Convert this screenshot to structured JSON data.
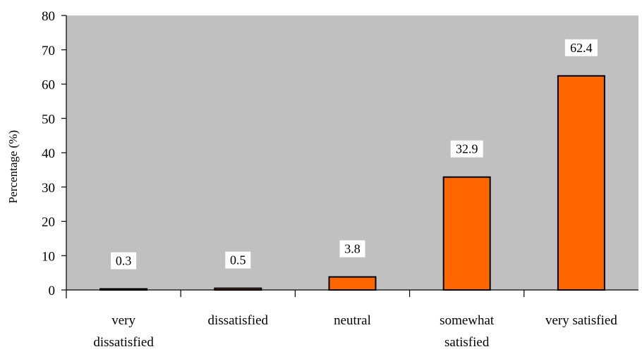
{
  "chart_data": {
    "type": "bar",
    "categories": [
      [
        "very",
        "dissatisfied"
      ],
      [
        "dissatisfied"
      ],
      [
        "neutral"
      ],
      [
        "somewhat",
        "satisfied"
      ],
      [
        "very satisfied"
      ]
    ],
    "values": [
      0.3,
      0.5,
      3.8,
      32.9,
      62.4
    ],
    "data_labels": [
      "0.3",
      "0.5",
      "3.8",
      "32.9",
      "62.4"
    ],
    "title": "",
    "xlabel": "",
    "ylabel": "Percentage (%)",
    "ylim": [
      0,
      80
    ],
    "yticks": [
      "0",
      "10",
      "20",
      "30",
      "40",
      "50",
      "60",
      "70",
      "80"
    ],
    "grid": false,
    "legend": "none",
    "colors": {
      "plot_area": "#c0c0c0",
      "bar_fill": "#ff6600",
      "bar_stroke": "#000000",
      "label_box": "#ffffff"
    }
  }
}
